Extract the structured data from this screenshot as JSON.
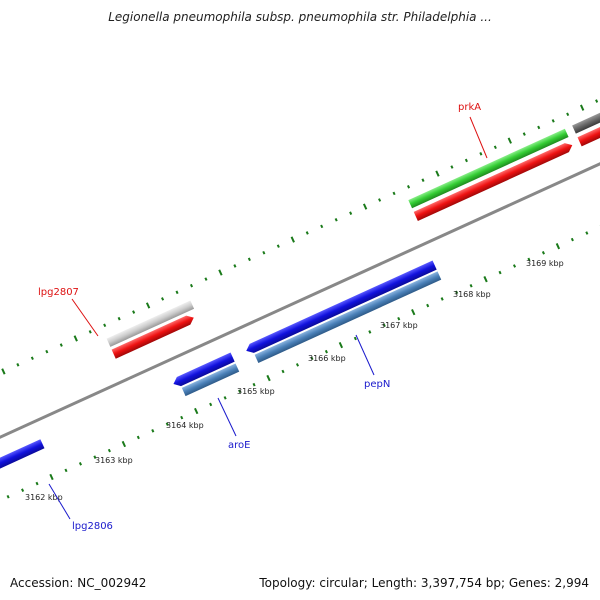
{
  "title": "Legionella pneumophila subsp. pneumophila str. Philadelphia ...",
  "footer": {
    "accession": "Accession: NC_002942",
    "stats": "Topology: circular; Length: 3,397,754 bp; Genes: 2,994"
  },
  "ticks": [
    {
      "label": "3162 kbp"
    },
    {
      "label": "3163 kbp"
    },
    {
      "label": "3164 kbp"
    },
    {
      "label": "3165 kbp"
    },
    {
      "label": "3166 kbp"
    },
    {
      "label": "3167 kbp"
    },
    {
      "label": "3168 kbp"
    },
    {
      "label": "3169 kbp"
    }
  ],
  "gene_labels": [
    {
      "name": "prkA",
      "color": "#dd1111"
    },
    {
      "name": "lpg2807",
      "color": "#dd1111"
    },
    {
      "name": "aroE",
      "color": "#1a1acc"
    },
    {
      "name": "pepN",
      "color": "#1a1acc"
    },
    {
      "name": "lpg2806",
      "color": "#1a1acc"
    }
  ],
  "colors": {
    "forward_cds": "#ee1111",
    "reverse_cds": "#1111dd",
    "forward_cog_green": "#33cc33",
    "forward_cog_gray": "#cccccc",
    "forward_cog_dark": "#666666",
    "reverse_cog_steel": "#4a80b8",
    "backbone": "#888888",
    "tick_marks": "#1a7a1a"
  }
}
